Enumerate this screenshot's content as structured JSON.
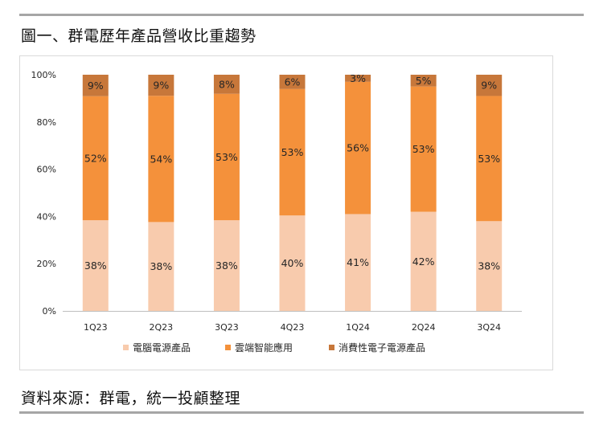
{
  "figure": {
    "title": "圖一、群電歷年產品營收比重趨勢",
    "source": "資料來源：群電，統一投顧整理"
  },
  "colors": {
    "series1": "#f8cbad",
    "series2": "#f4913b",
    "series3": "#c7773a",
    "axis": "#bfbfbf",
    "label": "#262626"
  },
  "chart_data": {
    "type": "bar",
    "stacked": true,
    "percent": true,
    "title": "",
    "xlabel": "",
    "ylabel": "",
    "ylim": [
      0,
      100
    ],
    "y_ticks": [
      "0%",
      "20%",
      "40%",
      "60%",
      "80%",
      "100%"
    ],
    "y_tick_values": [
      0,
      20,
      40,
      60,
      80,
      100
    ],
    "categories": [
      "1Q23",
      "2Q23",
      "3Q23",
      "4Q23",
      "1Q24",
      "2Q24",
      "3Q24"
    ],
    "series": [
      {
        "name": "電腦電源產品",
        "values": [
          38,
          38,
          38,
          40,
          41,
          42,
          38
        ],
        "labels": [
          "38%",
          "38%",
          "38%",
          "40%",
          "41%",
          "42%",
          "38%"
        ]
      },
      {
        "name": "雲端智能應用",
        "values": [
          52,
          54,
          53,
          53,
          56,
          53,
          53
        ],
        "labels": [
          "52%",
          "54%",
          "53%",
          "53%",
          "56%",
          "53%",
          "53%"
        ]
      },
      {
        "name": "消費性電子電源產品",
        "values": [
          9,
          9,
          8,
          6,
          3,
          5,
          9
        ],
        "labels": [
          "9%",
          "9%",
          "8%",
          "6%",
          "3%",
          "5%",
          "9%"
        ]
      }
    ],
    "legend_position": "bottom",
    "grid": false
  }
}
